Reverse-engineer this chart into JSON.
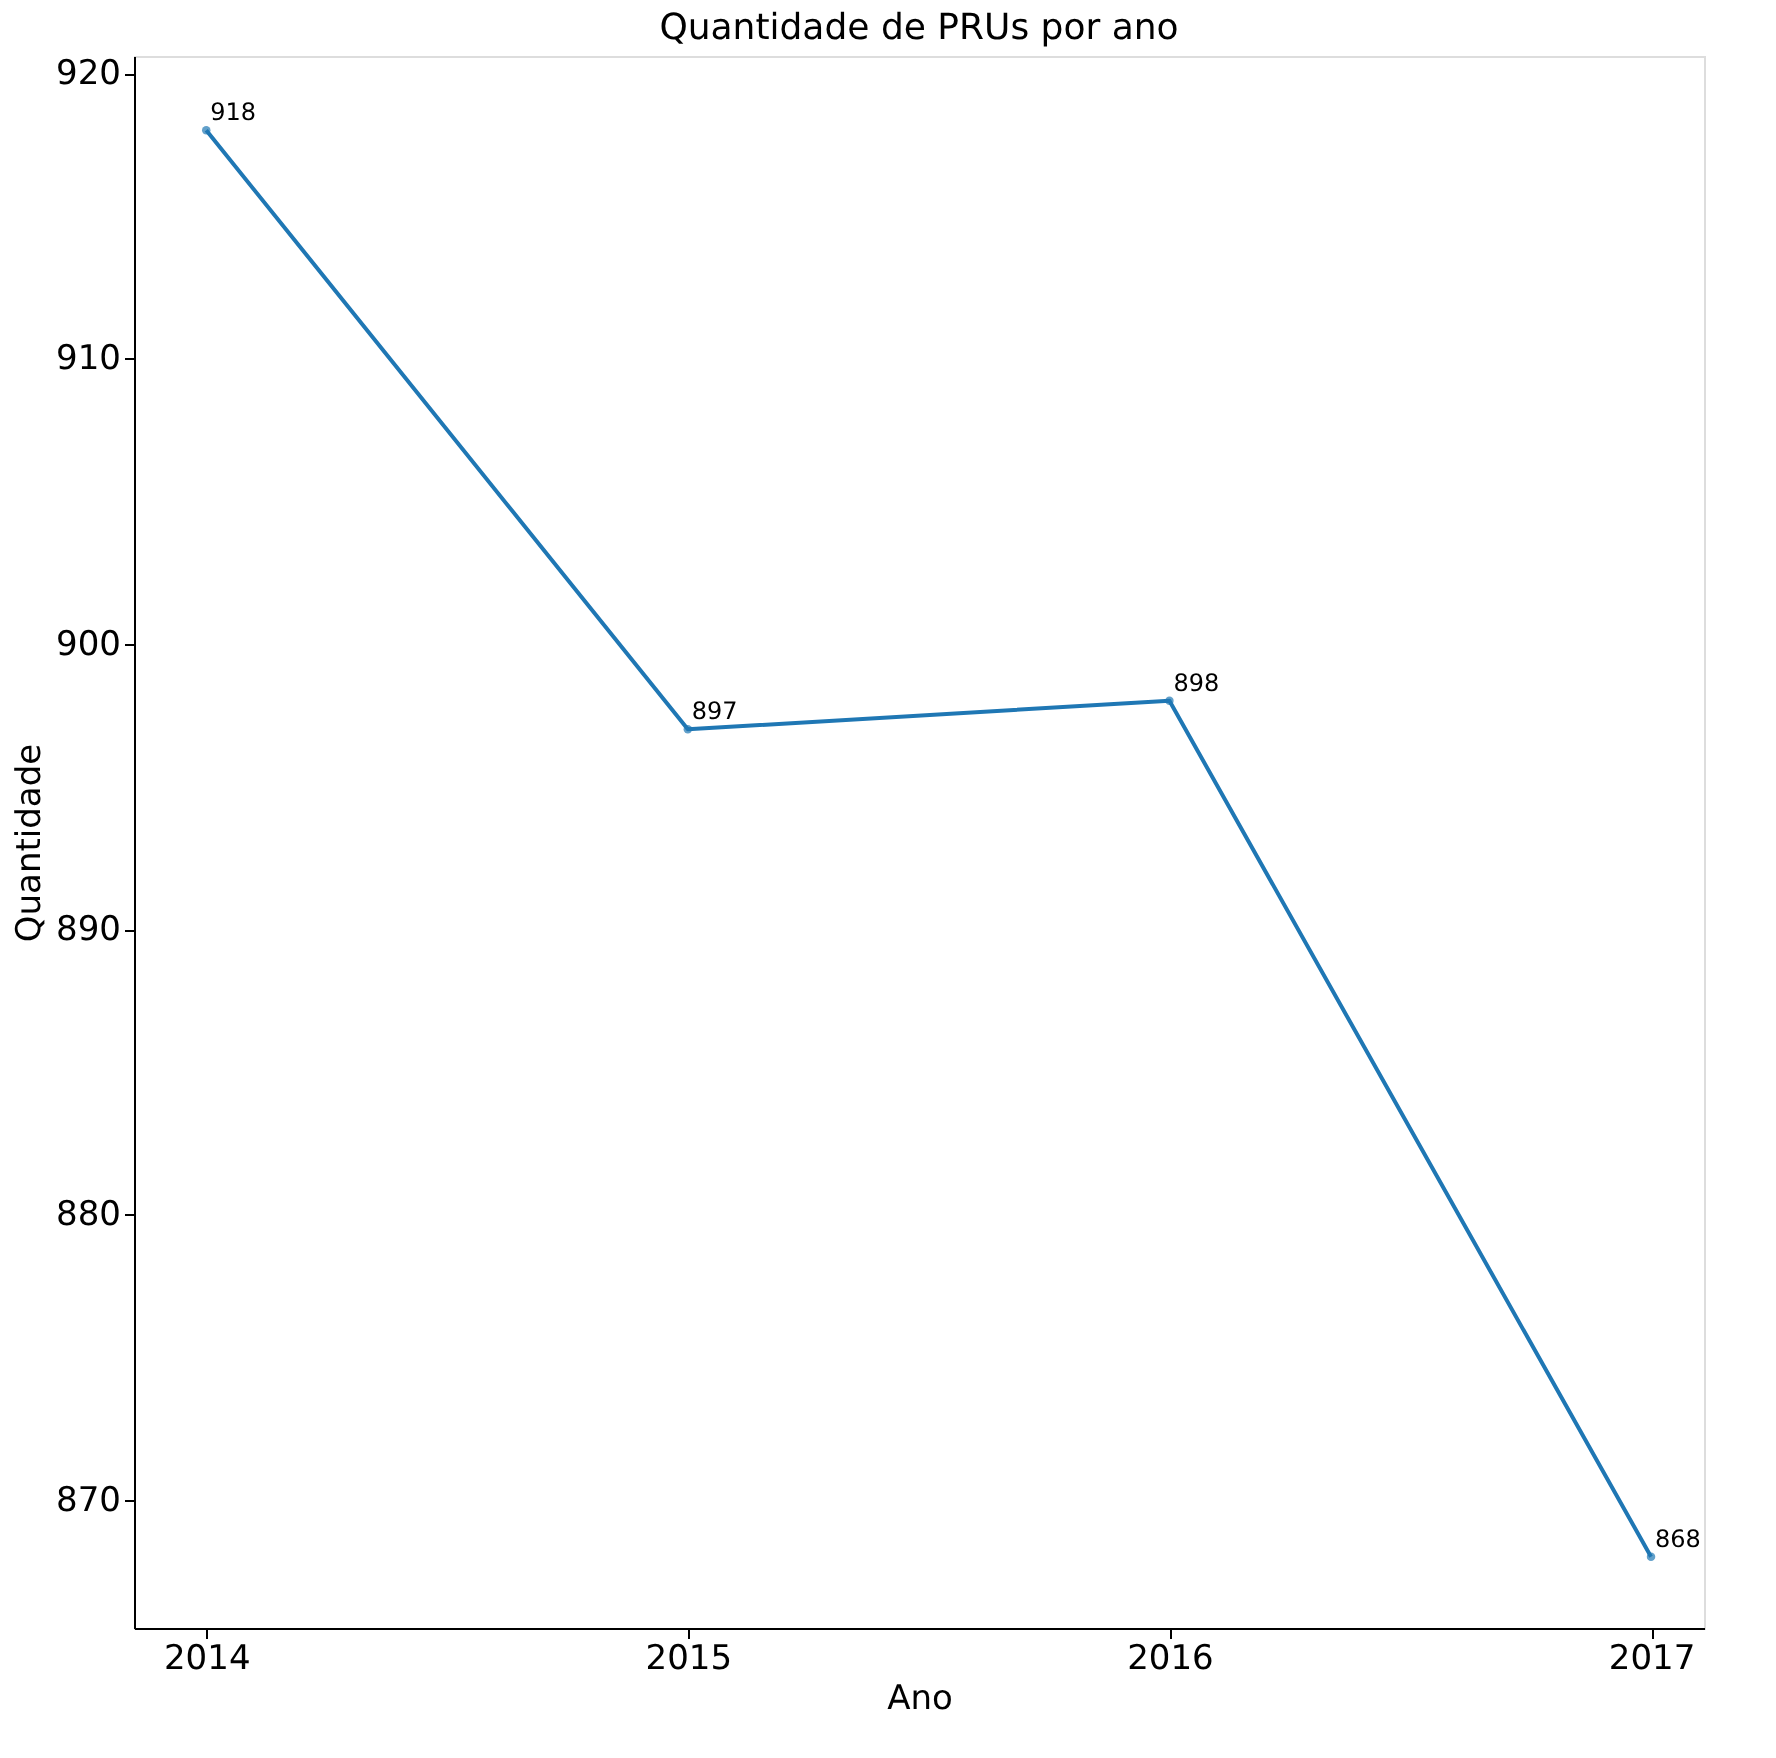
{
  "chart_data": {
    "type": "line",
    "title": "Quantidade de PRUs por ano",
    "xlabel": "Ano",
    "ylabel": "Quantidade",
    "x": [
      2014,
      2015,
      2016,
      2017
    ],
    "series": [
      {
        "color": "#1f77b4",
        "values": [
          918,
          897,
          898,
          868
        ]
      }
    ],
    "xlim": [
      2013.85,
      2017.11
    ],
    "xticks": [
      2014,
      2015,
      2016,
      2017
    ],
    "ylim": [
      865.5,
      920.6
    ],
    "yticks": [
      870,
      880,
      890,
      900,
      910,
      920
    ],
    "data_labels": true,
    "marker": "circle",
    "line_style": "solid",
    "grid": false,
    "legend": false
  }
}
